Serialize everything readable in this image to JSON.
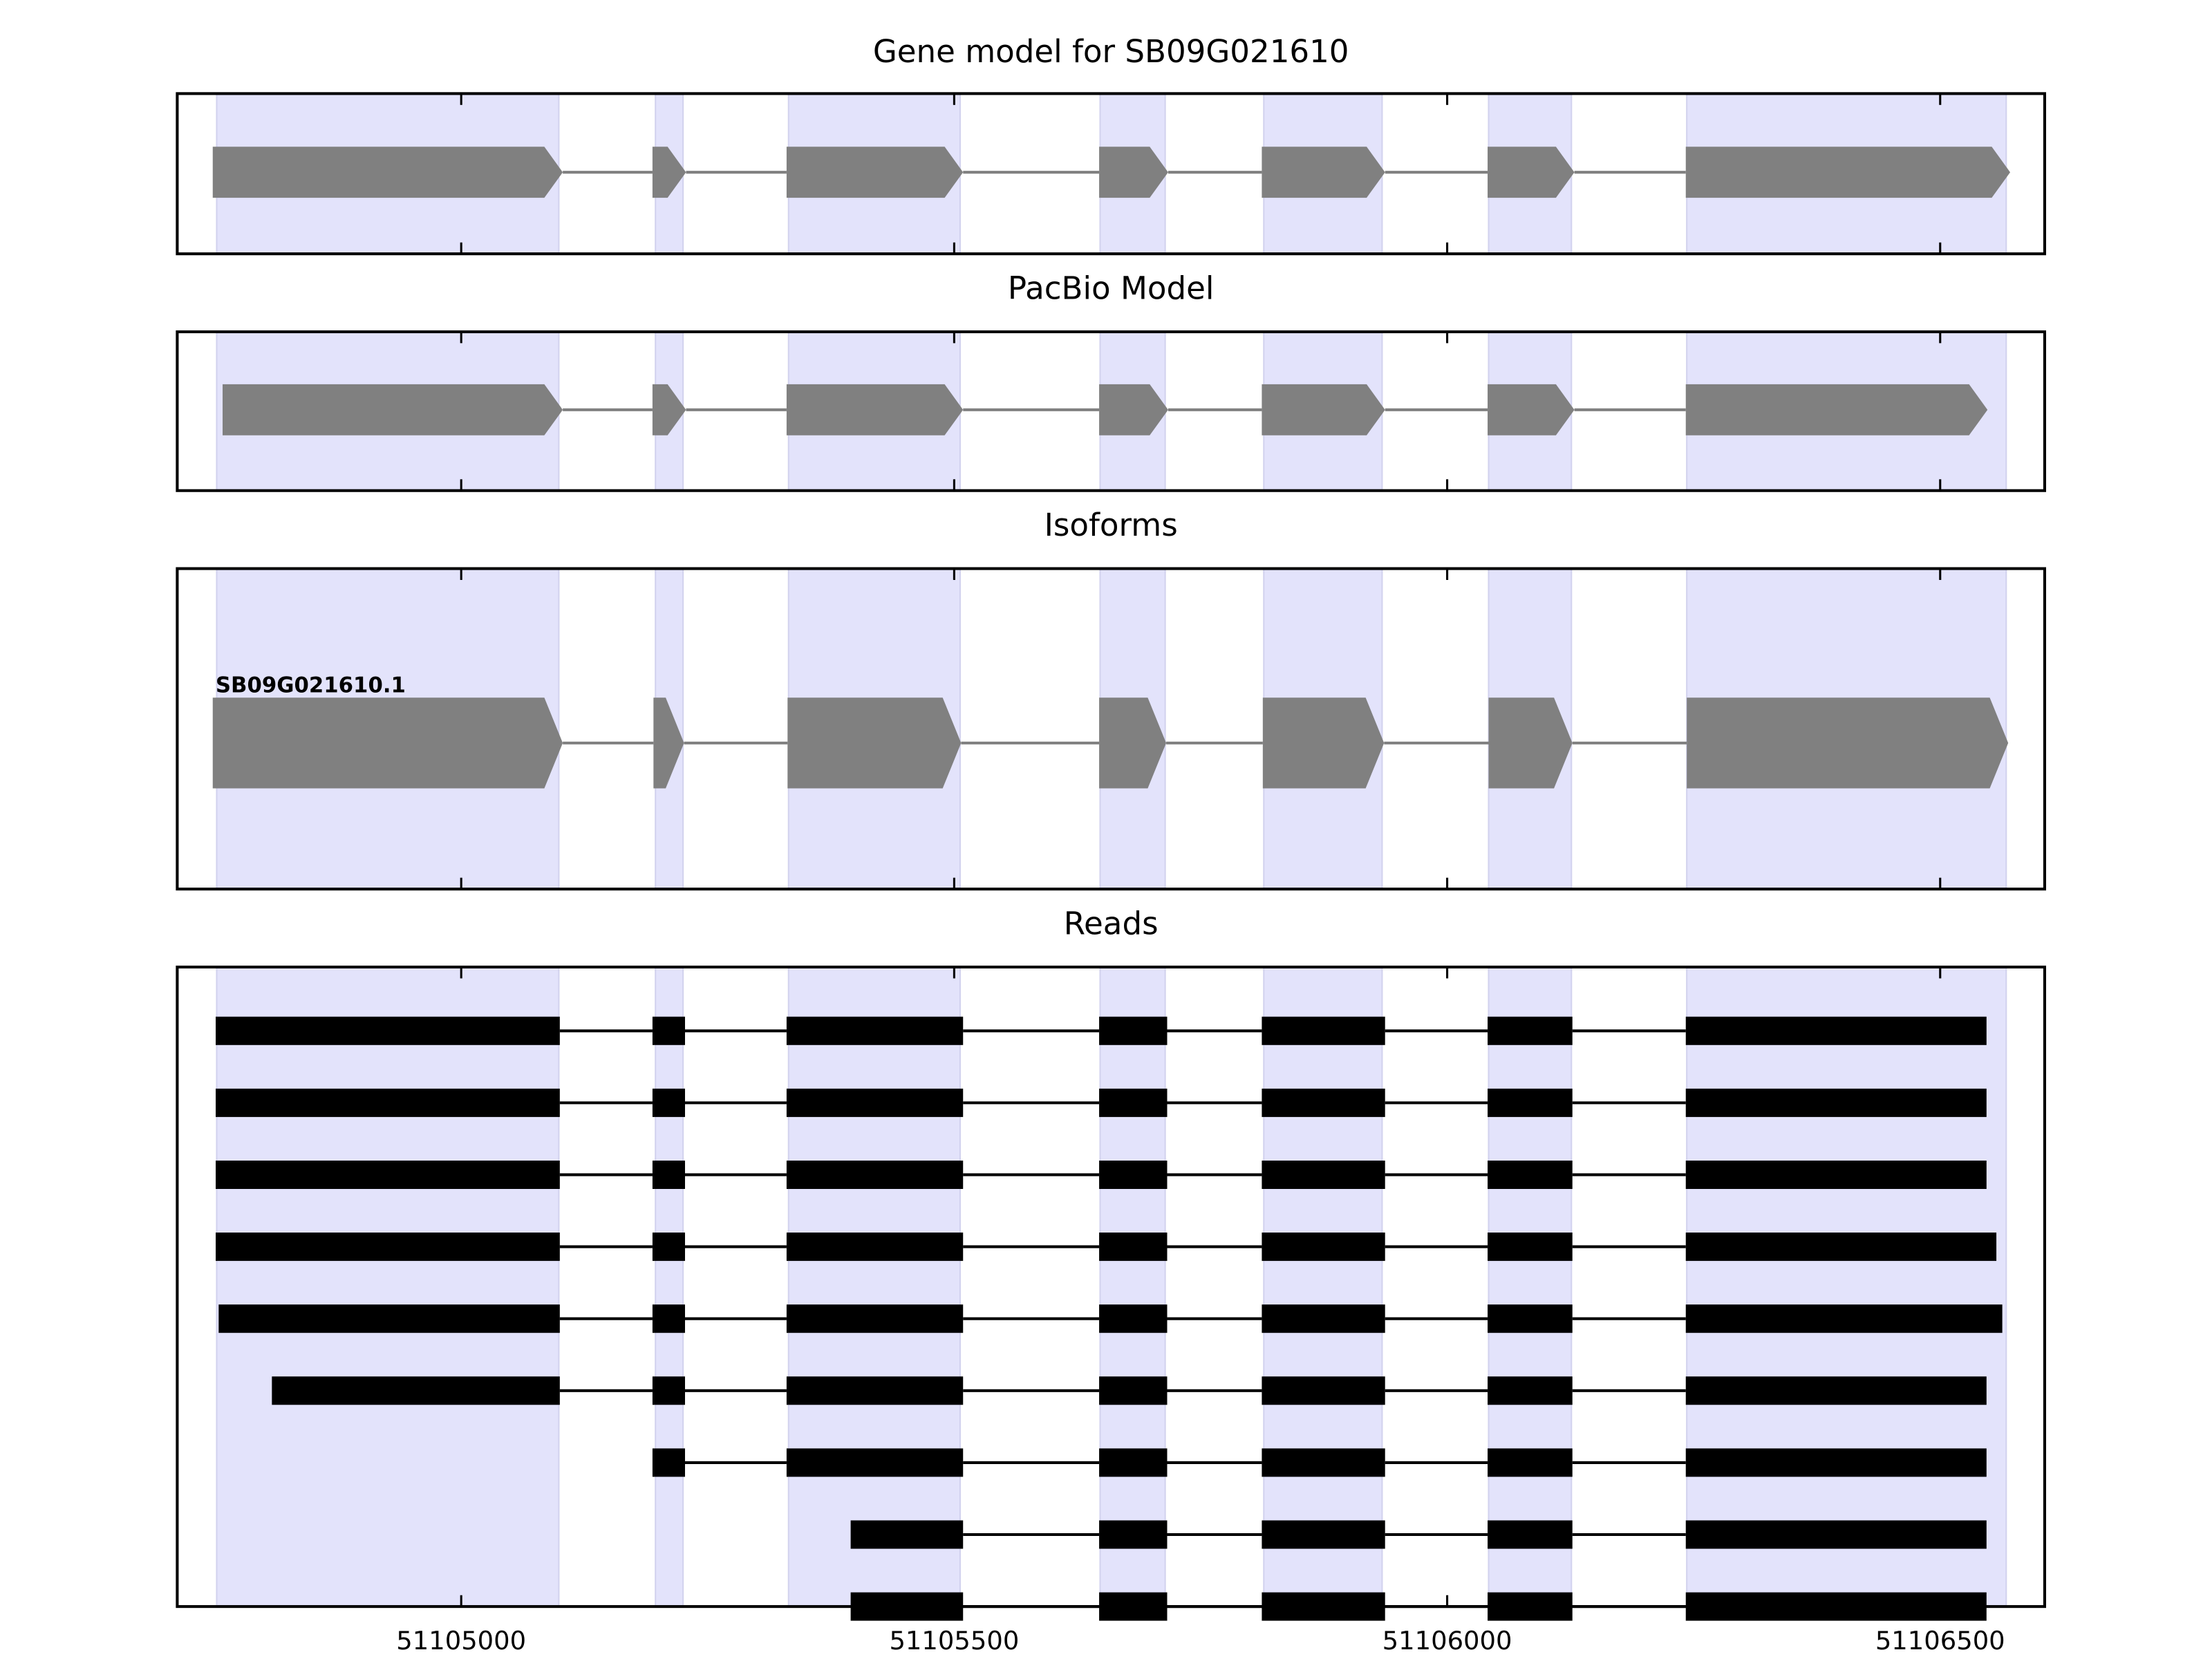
{
  "chart_data": [
    {
      "type": "gene-model",
      "title": "Gene model for SB09G021610",
      "highlights": [
        [
          51104752,
          51105099
        ],
        [
          51105197,
          51105225
        ],
        [
          51105332,
          51105506
        ],
        [
          51105648,
          51105714
        ],
        [
          51105814,
          51105934
        ],
        [
          51106042,
          51106126
        ],
        [
          51106243,
          51106567
        ]
      ],
      "exons": [
        [
          51104748,
          51105103
        ],
        [
          51105194,
          51105228
        ],
        [
          51105330,
          51105509
        ],
        [
          51105647,
          51105717
        ],
        [
          51105812,
          51105937
        ],
        [
          51106041,
          51106129
        ],
        [
          51106242,
          51106571
        ]
      ],
      "color": "#808080"
    },
    {
      "type": "gene-model",
      "title": "PacBio Model",
      "highlights": [
        [
          51104752,
          51105099
        ],
        [
          51105197,
          51105225
        ],
        [
          51105332,
          51105506
        ],
        [
          51105648,
          51105714
        ],
        [
          51105814,
          51105934
        ],
        [
          51106042,
          51106126
        ],
        [
          51106243,
          51106567
        ]
      ],
      "exons": [
        [
          51104758,
          51105103
        ],
        [
          51105194,
          51105228
        ],
        [
          51105330,
          51105509
        ],
        [
          51105647,
          51105717
        ],
        [
          51105812,
          51105937
        ],
        [
          51106041,
          51106129
        ],
        [
          51106242,
          51106548
        ]
      ],
      "color": "#808080"
    },
    {
      "type": "isoforms",
      "title": "Isoforms",
      "highlights": [
        [
          51104752,
          51105099
        ],
        [
          51105197,
          51105225
        ],
        [
          51105332,
          51105506
        ],
        [
          51105648,
          51105714
        ],
        [
          51105814,
          51105934
        ],
        [
          51106042,
          51106126
        ],
        [
          51106243,
          51106567
        ]
      ],
      "isoforms": [
        {
          "name": "SB09G021610.1",
          "exons": [
            [
              51104748,
              51105103
            ],
            [
              51105195,
              51105226
            ],
            [
              51105331,
              51105507
            ],
            [
              51105647,
              51105715
            ],
            [
              51105813,
              51105936
            ],
            [
              51106042,
              51106127
            ],
            [
              51106243,
              51106569
            ]
          ]
        }
      ],
      "color": "#808080"
    },
    {
      "type": "reads",
      "title": "Reads",
      "highlights": [
        [
          51104752,
          51105099
        ],
        [
          51105197,
          51105225
        ],
        [
          51105332,
          51105506
        ],
        [
          51105648,
          51105714
        ],
        [
          51105814,
          51105934
        ],
        [
          51106042,
          51106126
        ],
        [
          51106243,
          51106567
        ]
      ],
      "reads": [
        [
          [
            51104751,
            51105100
          ],
          [
            51105194,
            51105227
          ],
          [
            51105330,
            51105509
          ],
          [
            51105647,
            51105716
          ],
          [
            51105812,
            51105937
          ],
          [
            51106041,
            51106127
          ],
          [
            51106242,
            51106547
          ]
        ],
        [
          [
            51104751,
            51105100
          ],
          [
            51105194,
            51105227
          ],
          [
            51105330,
            51105509
          ],
          [
            51105647,
            51105716
          ],
          [
            51105812,
            51105937
          ],
          [
            51106041,
            51106127
          ],
          [
            51106242,
            51106547
          ]
        ],
        [
          [
            51104751,
            51105100
          ],
          [
            51105194,
            51105227
          ],
          [
            51105330,
            51105509
          ],
          [
            51105647,
            51105716
          ],
          [
            51105812,
            51105937
          ],
          [
            51106041,
            51106127
          ],
          [
            51106242,
            51106547
          ]
        ],
        [
          [
            51104751,
            51105100
          ],
          [
            51105194,
            51105227
          ],
          [
            51105330,
            51105509
          ],
          [
            51105647,
            51105716
          ],
          [
            51105812,
            51105937
          ],
          [
            51106041,
            51106127
          ],
          [
            51106242,
            51106557
          ]
        ],
        [
          [
            51104754,
            51105100
          ],
          [
            51105194,
            51105227
          ],
          [
            51105330,
            51105509
          ],
          [
            51105647,
            51105716
          ],
          [
            51105812,
            51105937
          ],
          [
            51106041,
            51106127
          ],
          [
            51106242,
            51106563
          ]
        ],
        [
          [
            51104808,
            51105100
          ],
          [
            51105194,
            51105227
          ],
          [
            51105330,
            51105509
          ],
          [
            51105647,
            51105716
          ],
          [
            51105812,
            51105937
          ],
          [
            51106041,
            51106127
          ],
          [
            51106242,
            51106547
          ]
        ],
        [
          [
            51105194,
            51105227
          ],
          [
            51105330,
            51105509
          ],
          [
            51105647,
            51105716
          ],
          [
            51105812,
            51105937
          ],
          [
            51106041,
            51106127
          ],
          [
            51106242,
            51106547
          ]
        ],
        [
          [
            51105395,
            51105509
          ],
          [
            51105647,
            51105716
          ],
          [
            51105812,
            51105937
          ],
          [
            51106041,
            51106127
          ],
          [
            51106242,
            51106547
          ]
        ],
        [
          [
            51105395,
            51105509
          ],
          [
            51105647,
            51105716
          ],
          [
            51105812,
            51105937
          ],
          [
            51106041,
            51106127
          ],
          [
            51106242,
            51106547
          ]
        ]
      ],
      "color": "#000000",
      "xlim": [
        51104712,
        51106606
      ],
      "xticks": [
        51105000,
        51105500,
        51106000,
        51106500
      ]
    }
  ]
}
